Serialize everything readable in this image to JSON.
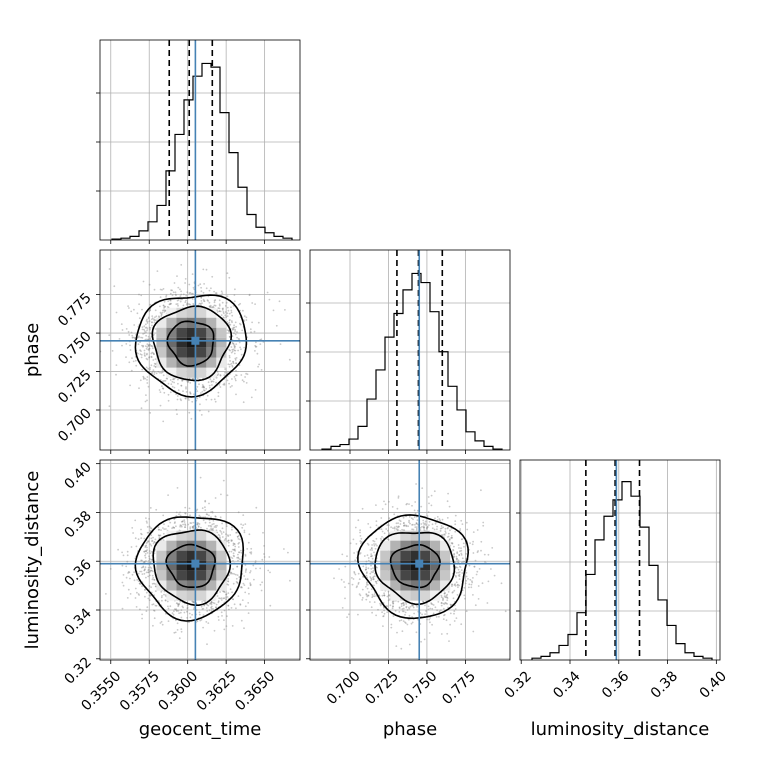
{
  "chart_data": {
    "type": "corner",
    "parameters": [
      "geocent_time",
      "phase",
      "luminosity_distance"
    ],
    "truths": {
      "geocent_time": 0.3605,
      "phase": 0.745,
      "luminosity_distance": 0.359
    },
    "ranges": {
      "geocent_time": [
        0.3543,
        0.3673
      ],
      "phase": [
        0.674,
        0.804
      ],
      "luminosity_distance": [
        0.3195,
        0.4015
      ]
    },
    "ticks": {
      "geocent_time": [
        "0.3550",
        "0.3575",
        "0.3600",
        "0.3625",
        "0.3650"
      ],
      "phase": [
        "0.700",
        "0.725",
        "0.750",
        "0.775"
      ],
      "luminosity_distance": [
        "0.32",
        "0.34",
        "0.36",
        "0.38",
        "0.40"
      ]
    },
    "quantiles": {
      "geocent_time": [
        0.3588,
        0.3601,
        0.3616
      ],
      "phase": [
        0.7305,
        0.7445,
        0.76
      ],
      "luminosity_distance": [
        0.3465,
        0.3585,
        0.3685
      ]
    },
    "histograms": {
      "geocent_time": [
        0.005,
        0.01,
        0.02,
        0.05,
        0.1,
        0.19,
        0.38,
        0.58,
        0.77,
        0.9,
        0.97,
        0.95,
        0.7,
        0.48,
        0.29,
        0.14,
        0.07,
        0.04,
        0.02,
        0.01
      ],
      "phase": [
        0.005,
        0.02,
        0.03,
        0.06,
        0.13,
        0.28,
        0.44,
        0.62,
        0.75,
        0.88,
        0.97,
        0.92,
        0.76,
        0.54,
        0.35,
        0.22,
        0.1,
        0.05,
        0.02,
        0.005
      ],
      "luminosity_distance": [
        0.01,
        0.02,
        0.04,
        0.08,
        0.14,
        0.26,
        0.47,
        0.66,
        0.79,
        0.88,
        0.98,
        0.9,
        0.73,
        0.52,
        0.33,
        0.19,
        0.09,
        0.04,
        0.02,
        0.01
      ]
    },
    "xlabel_bottom": [
      "geocent_time",
      "phase",
      "luminosity_distance"
    ],
    "ylabel_left": [
      "phase",
      "luminosity_distance"
    ],
    "grid": true
  }
}
